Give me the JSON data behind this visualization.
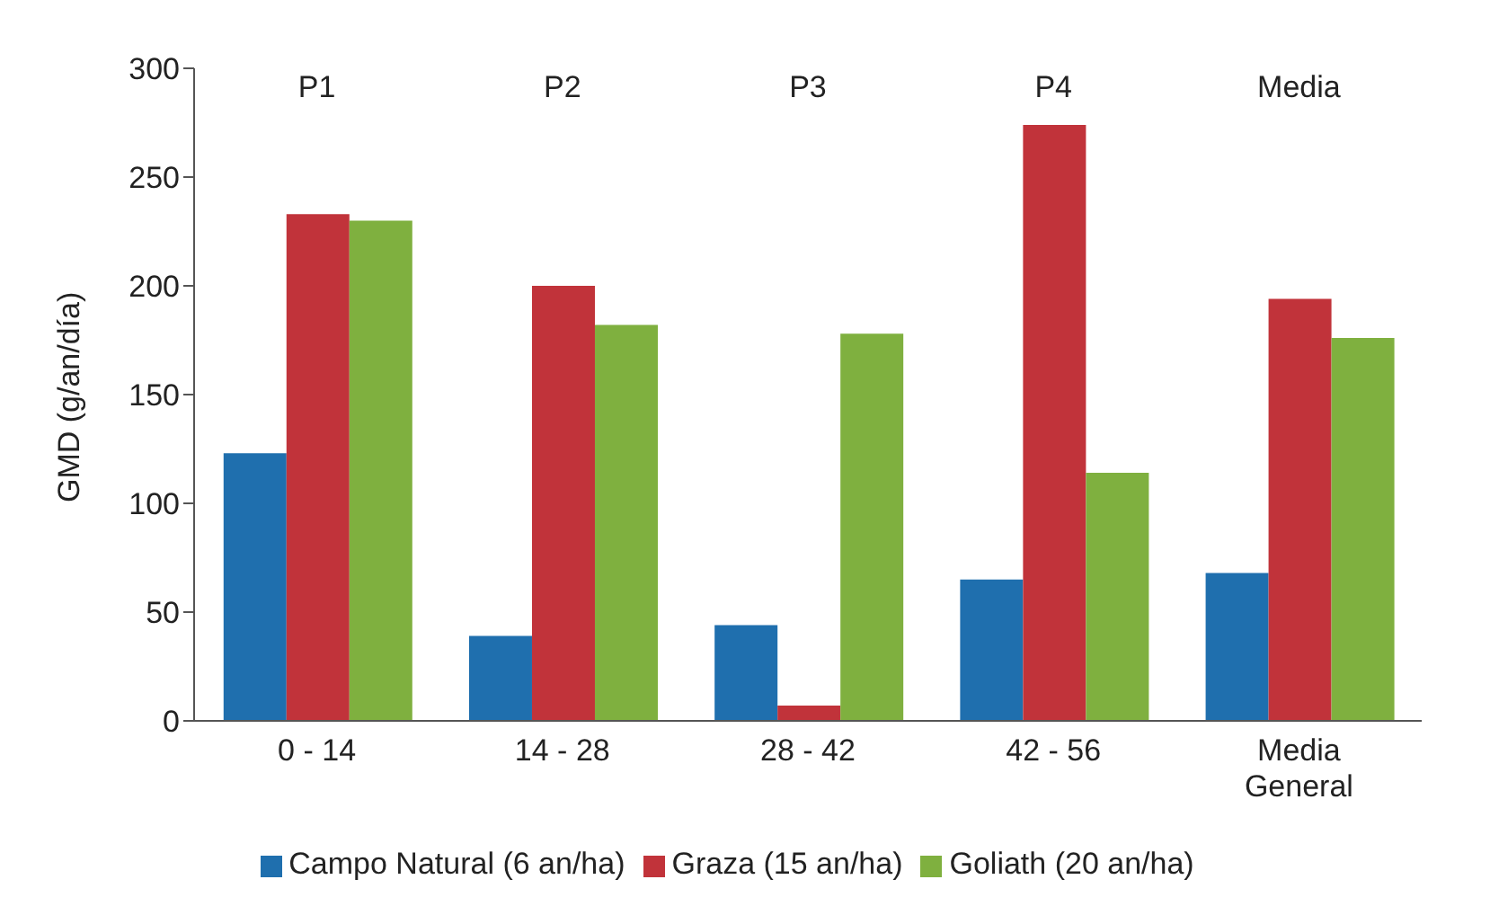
{
  "chart_data": {
    "type": "bar",
    "ylabel": "GMD (g/an/día)",
    "categories": [
      "0 - 14",
      "14 - 28",
      "28 - 42",
      "42 - 56",
      "Media General"
    ],
    "series": [
      {
        "name": "Campo Natural (6 an/ha)",
        "color": "#1f6fae",
        "values": [
          123,
          39,
          44,
          65,
          68
        ]
      },
      {
        "name": "Graza (15 an/ha)",
        "color": "#c1333a",
        "values": [
          233,
          200,
          7,
          274,
          194
        ]
      },
      {
        "name": "Goliath (20 an/ha)",
        "color": "#7fb03f",
        "values": [
          230,
          182,
          178,
          114,
          176
        ]
      }
    ],
    "ylim": [
      0,
      300
    ],
    "yticks": [
      0,
      50,
      100,
      150,
      200,
      250,
      300
    ],
    "grid": false,
    "legend": "bottom",
    "annotations": [
      "P1",
      "P2",
      "P3",
      "P4",
      "Media"
    ]
  }
}
